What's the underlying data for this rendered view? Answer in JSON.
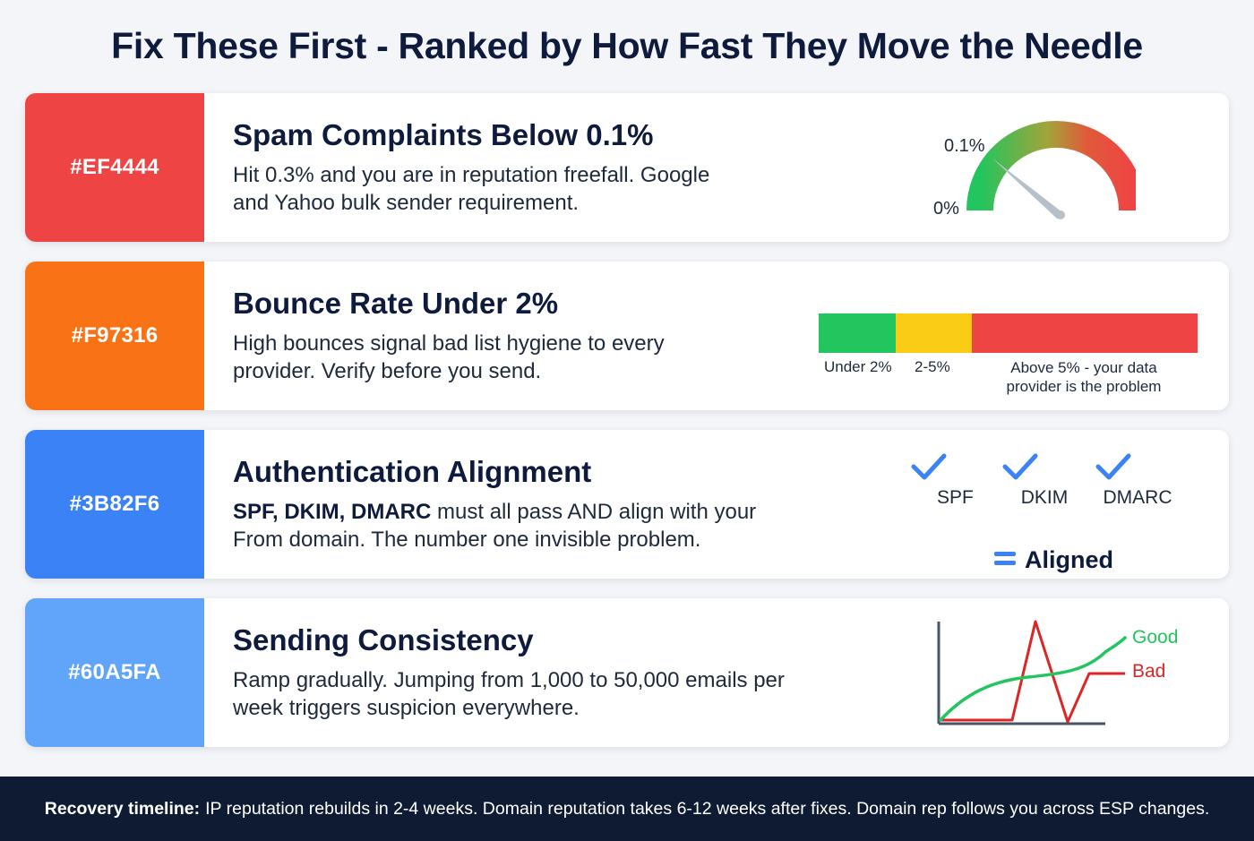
{
  "header": {
    "title": "Fix These First - Ranked by How Fast They Move the Needle"
  },
  "cards": [
    {
      "color": "#EF4444",
      "swatch_label": "#EF4444",
      "title": "Spam Complaints Below 0.1%",
      "body": "Hit 0.3% and you are in reputation freefall. Google and Yahoo bulk sender requirement.",
      "gauge": {
        "label_top": "0.1%",
        "label_bottom": "0%"
      }
    },
    {
      "color": "#F97316",
      "swatch_label": "#F97316",
      "title": "Bounce Rate Under 2%",
      "body": "High bounces signal bad list hygiene to every provider. Verify before you send.",
      "bar": {
        "label_green": "Under 2%",
        "label_yellow": "2-5%",
        "label_red": "Above 5% - your data provider is the problem"
      }
    },
    {
      "color": "#3B82F6",
      "swatch_label": "#3B82F6",
      "title": "Authentication Alignment",
      "body_bold": "SPF, DKIM, DMARC",
      "body_rest": " must all pass AND align with your From domain. The number one invisible problem.",
      "checks": [
        "SPF",
        "DKIM",
        "DMARC"
      ],
      "equals_label": "Aligned"
    },
    {
      "color": "#60A5FA",
      "swatch_label": "#60A5FA",
      "title": "Sending Consistency",
      "body": "Ramp gradually. Jumping from 1,000 to 50,000 emails per week triggers suspicion everywhere.",
      "legend": {
        "good": "Good",
        "bad": "Bad"
      }
    }
  ],
  "footer": {
    "label": "Recovery timeline:",
    "text": "IP reputation rebuilds in 2-4 weeks. Domain reputation takes 6-12 weeks after fixes. Domain rep follows you across ESP changes."
  }
}
